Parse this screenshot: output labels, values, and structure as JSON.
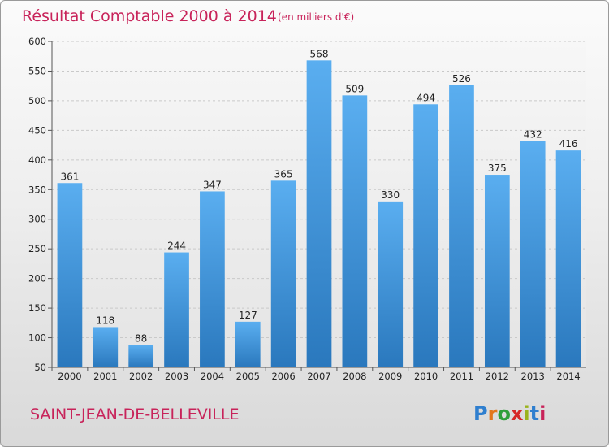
{
  "header": {
    "title": "Résultat Comptable 2000 à 2014",
    "unit": "(en milliers d'€)"
  },
  "footer": {
    "place": "SAINT-JEAN-DE-BELLEVILLE",
    "brand_letters": [
      "P",
      "r",
      "o",
      "x",
      "i",
      "t",
      "i"
    ],
    "brand_colors": [
      "#2f7fcf",
      "#e2761b",
      "#2f9e3a",
      "#d62828",
      "#9ab31c",
      "#2f7fcf",
      "#c8235a"
    ]
  },
  "colors": {
    "bar_top": "#5aaef0",
    "bar_bottom": "#2a78bd",
    "title": "#c8235a"
  },
  "chart_data": {
    "type": "bar",
    "categories": [
      "2000",
      "2001",
      "2002",
      "2003",
      "2004",
      "2005",
      "2006",
      "2007",
      "2008",
      "2009",
      "2010",
      "2011",
      "2012",
      "2013",
      "2014"
    ],
    "values": [
      361,
      118,
      88,
      244,
      347,
      127,
      365,
      568,
      509,
      330,
      494,
      526,
      375,
      432,
      416
    ],
    "title": "Résultat Comptable 2000 à 2014",
    "subtitle": "(en milliers d'€)",
    "xlabel": "",
    "ylabel": "",
    "ylim": [
      50,
      600
    ],
    "yticks": [
      50,
      100,
      150,
      200,
      250,
      300,
      350,
      400,
      450,
      500,
      550,
      600
    ],
    "grid": true,
    "legend": "none"
  }
}
